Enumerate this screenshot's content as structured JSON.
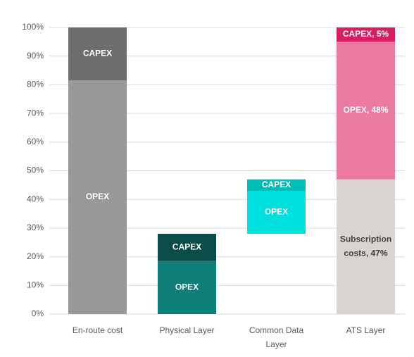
{
  "chart_data": {
    "type": "bar",
    "stacked": true,
    "categories": [
      "En-route cost",
      "Physical Layer",
      "Common Data Layer",
      "ATS Layer"
    ],
    "bases": [
      0,
      0,
      28,
      0
    ],
    "series": [
      {
        "values": [
          null,
          null,
          null,
          47
        ],
        "colors": [
          null,
          null,
          null,
          "#d9d4d0"
        ],
        "label_colors": [
          null,
          null,
          null,
          "#404040"
        ],
        "value_labels": [
          null,
          null,
          null,
          "Subscription costs, 47%"
        ]
      },
      {
        "values": [
          81.5,
          18.5,
          15,
          48
        ],
        "colors": [
          "#97989a",
          "#0e7f78",
          "#00e0de",
          "#ea7aa0"
        ],
        "label_colors": [
          "#ffffff",
          "#ffffff",
          "#ffffff",
          "#ffffff"
        ],
        "value_labels": [
          "OPEX",
          "OPEX",
          "OPEX",
          "OPEX, 48%"
        ]
      },
      {
        "values": [
          18.5,
          9.5,
          4,
          5
        ],
        "colors": [
          "#6d6e70",
          "#0a4d48",
          "#00bdb8",
          "#d81e61"
        ],
        "label_colors": [
          "#ffffff",
          "#ffffff",
          "#ffffff",
          "#ffffff"
        ],
        "value_labels": [
          "CAPEX",
          "CAPEX",
          "CAPEX",
          "CAPEX, 5%"
        ]
      }
    ],
    "ylim": [
      0,
      100
    ],
    "yticks": [
      {
        "value": 0,
        "label": "0%"
      },
      {
        "value": 10,
        "label": "10%"
      },
      {
        "value": 20,
        "label": "20%"
      },
      {
        "value": 30,
        "label": "30%"
      },
      {
        "value": 40,
        "label": "40%"
      },
      {
        "value": 50,
        "label": "50%"
      },
      {
        "value": 60,
        "label": "60%"
      },
      {
        "value": 70,
        "label": "70%"
      },
      {
        "value": 80,
        "label": "80%"
      },
      {
        "value": 90,
        "label": "90%"
      },
      {
        "value": 100,
        "label": "100%"
      }
    ],
    "grid": true
  }
}
